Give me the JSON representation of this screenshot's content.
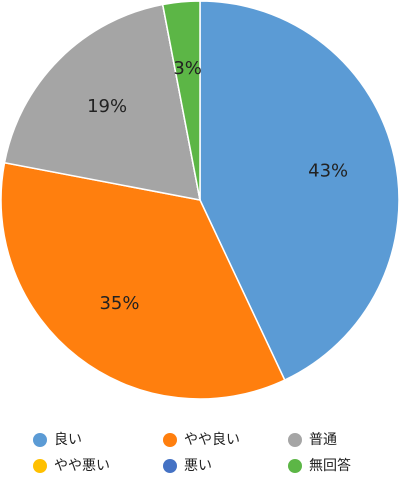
{
  "chart_data": {
    "type": "pie",
    "categories": [
      "良い",
      "やや良い",
      "普通",
      "やや悪い",
      "悪い",
      "無回答"
    ],
    "values": [
      43,
      35,
      19,
      0,
      0,
      3
    ],
    "value_labels": [
      "43%",
      "35%",
      "19%",
      null,
      null,
      "3%"
    ],
    "colors": [
      "#5b9bd5",
      "#ff7f0e",
      "#a5a5a5",
      "#ffc000",
      "#4472c4",
      "#5cb646"
    ],
    "legend": "bottom"
  }
}
